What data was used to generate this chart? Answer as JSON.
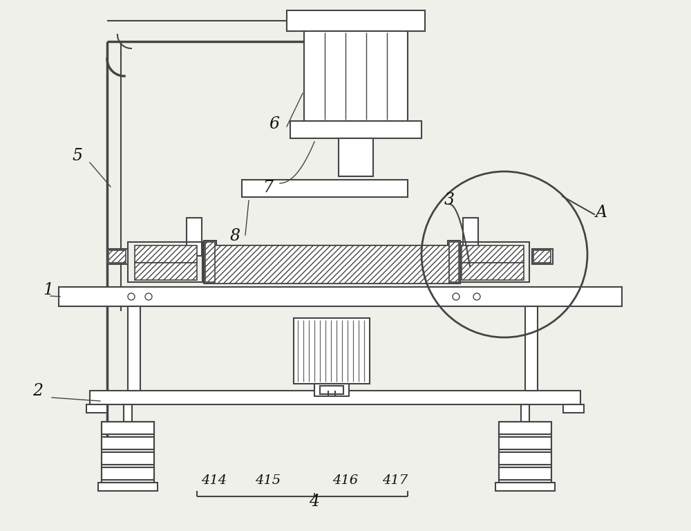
{
  "bg_color": "#f0f0eb",
  "line_color": "#444444",
  "lw_main": 1.5,
  "lw_thin": 1.0,
  "lw_thick": 2.5,
  "font_size_label": 17,
  "font_size_sub": 14
}
